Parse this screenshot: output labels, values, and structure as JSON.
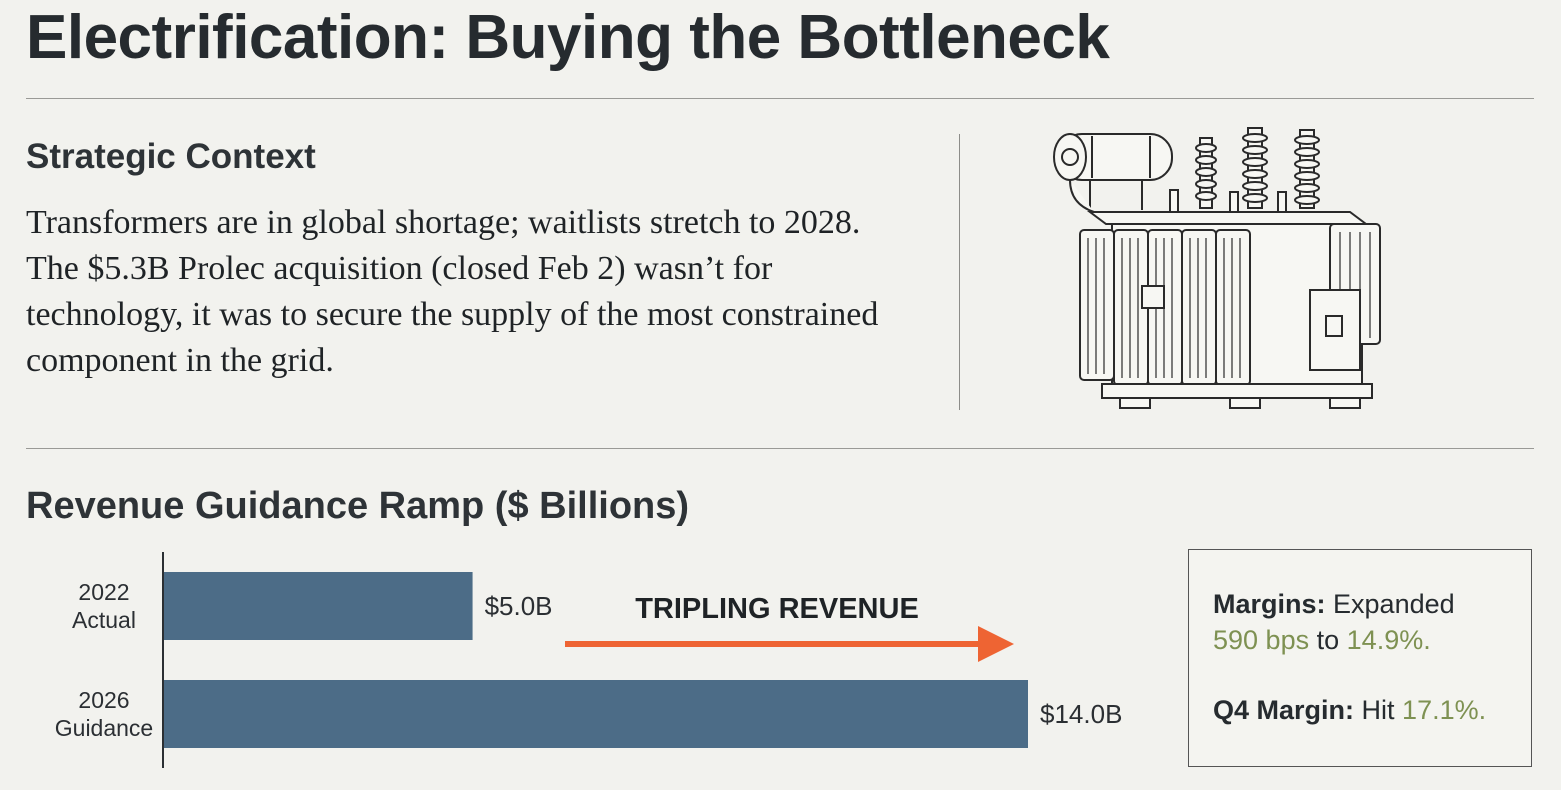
{
  "title": "Electrification: Buying the Bottleneck",
  "context": {
    "heading": "Strategic Context",
    "body": "Transformers are in global shortage; waitlists stretch to 2028. The $5.3B Prolec acquisition (closed Feb 2) wasn’t for technology, it was to secure the supply of the most constrained component in the grid.",
    "illustration_icon": "power-transformer-icon"
  },
  "chart_data": {
    "type": "bar",
    "orientation": "horizontal",
    "title": "Revenue Guidance Ramp ($ Billions)",
    "categories": [
      [
        "2022",
        "Actual"
      ],
      [
        "2026",
        "Guidance"
      ]
    ],
    "values": [
      5.0,
      14.0
    ],
    "value_labels": [
      "$5.0B",
      "$14.0B"
    ],
    "xlim": [
      0,
      14
    ],
    "bar_color": "#4c6c87",
    "annotation": {
      "text": "TRIPLING REVENUE",
      "arrow_color": "#ee6433"
    }
  },
  "callout": {
    "margins_label": "Margins:",
    "margins_text": "Expanded",
    "margins_bps": "590 bps",
    "margins_to": "to",
    "margins_value": "14.9%.",
    "q4_label": "Q4 Margin:",
    "q4_text": "Hit",
    "q4_value": "17.1%.",
    "highlight_color": "#7e9152"
  }
}
